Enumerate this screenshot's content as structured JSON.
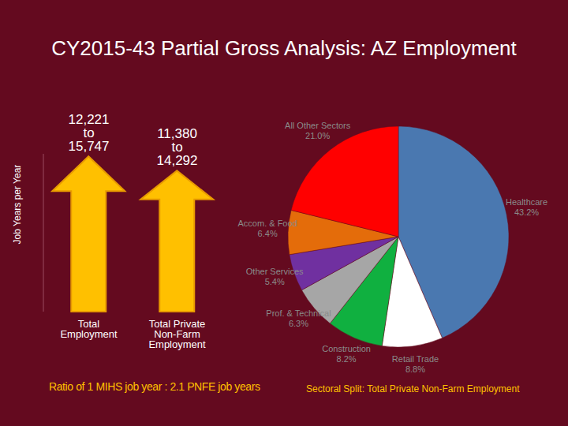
{
  "title": "CY2015-43 Partial Gross Analysis: AZ Employment",
  "chart_data": [
    {
      "type": "bar",
      "ylabel": "Job Years per Year",
      "categories": [
        "Total Employment",
        "Total Private Non-Farm Employment"
      ],
      "low": [
        12221,
        11380
      ],
      "high": [
        15747,
        14292
      ],
      "low_labels": [
        "12,221",
        "11,380"
      ],
      "high_labels": [
        "15,747",
        "14,292"
      ],
      "range_word": "to",
      "ylim": [
        0,
        16000
      ],
      "yticks": [],
      "tick_labels": "x",
      "color": "#ffc000",
      "caption": "Ratio of 1 MIHS job year : 2.1 PNFE job years"
    },
    {
      "type": "pie",
      "categories": [
        "Healthcare",
        "Retail Trade",
        "Construction",
        "Prof. & Technical",
        "Other Services",
        "Accom. & Food",
        "All Other Sectors"
      ],
      "values": [
        43.2,
        8.8,
        8.2,
        6.3,
        5.4,
        6.4,
        21.0
      ],
      "value_labels": [
        "43.2%",
        "8.8%",
        "8.2%",
        "6.3%",
        "5.4%",
        "6.4%",
        "21.0%"
      ],
      "colors": [
        "#4a78b0",
        "#ffffff",
        "#10b040",
        "#a6a6a6",
        "#7030a0",
        "#e46c0a",
        "#ff0000"
      ],
      "data_labels": true,
      "caption": "Sectoral Split: Total Private Non-Farm Employment"
    }
  ]
}
